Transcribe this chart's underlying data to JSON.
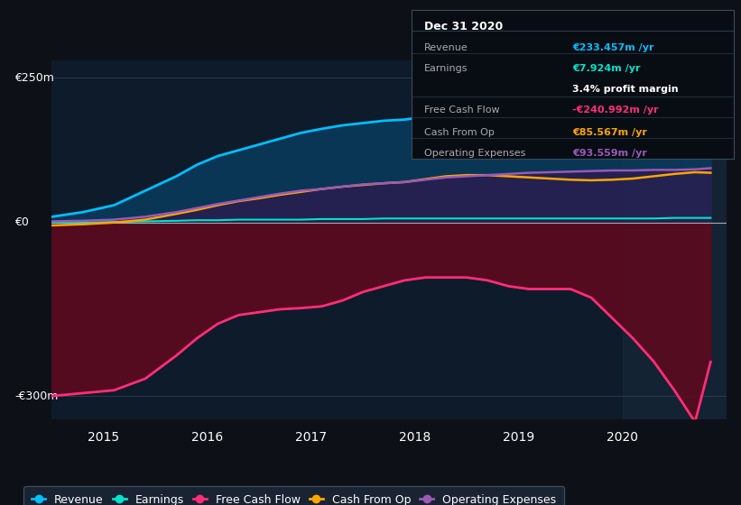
{
  "background_color": "#0d1117",
  "plot_bg_color": "#0d1b2a",
  "xlim": [
    2014.5,
    2021.0
  ],
  "ylim": [
    -340,
    280
  ],
  "xticks": [
    2015,
    2016,
    2017,
    2018,
    2019,
    2020
  ],
  "yticks_values": [
    250,
    0,
    -300
  ],
  "yticks_labels": [
    "€250m",
    "€0",
    "-€300m"
  ],
  "x": [
    2014.5,
    2014.8,
    2015.1,
    2015.4,
    2015.7,
    2015.9,
    2016.1,
    2016.3,
    2016.5,
    2016.7,
    2016.9,
    2017.1,
    2017.3,
    2017.5,
    2017.7,
    2017.9,
    2018.1,
    2018.3,
    2018.5,
    2018.7,
    2018.9,
    2019.1,
    2019.3,
    2019.5,
    2019.7,
    2019.9,
    2020.1,
    2020.3,
    2020.5,
    2020.7,
    2020.85
  ],
  "revenue": [
    10,
    18,
    30,
    55,
    80,
    100,
    115,
    125,
    135,
    145,
    155,
    162,
    168,
    172,
    176,
    178,
    183,
    185,
    183,
    180,
    177,
    175,
    173,
    172,
    172,
    174,
    178,
    188,
    205,
    228,
    233
  ],
  "earnings": [
    0,
    0,
    1,
    2,
    3,
    4,
    4,
    5,
    5,
    5,
    5,
    6,
    6,
    6,
    7,
    7,
    7,
    7,
    7,
    7,
    7,
    7,
    7,
    7,
    7,
    7,
    7,
    7,
    8,
    8,
    8
  ],
  "free_cash_flow": [
    -300,
    -295,
    -290,
    -270,
    -230,
    -200,
    -175,
    -160,
    -155,
    -150,
    -148,
    -145,
    -135,
    -120,
    -110,
    -100,
    -95,
    -95,
    -95,
    -100,
    -110,
    -115,
    -115,
    -115,
    -130,
    -165,
    -200,
    -240,
    -290,
    -345,
    -241
  ],
  "cash_from_op": [
    -5,
    -3,
    0,
    5,
    15,
    22,
    30,
    37,
    42,
    48,
    53,
    58,
    62,
    65,
    68,
    70,
    75,
    80,
    82,
    82,
    80,
    78,
    76,
    74,
    73,
    74,
    76,
    80,
    84,
    87,
    86
  ],
  "operating_expenses": [
    2,
    3,
    5,
    10,
    18,
    25,
    32,
    38,
    44,
    50,
    55,
    58,
    62,
    66,
    68,
    70,
    74,
    78,
    80,
    82,
    84,
    86,
    87,
    88,
    89,
    90,
    90,
    91,
    91,
    92,
    94
  ],
  "revenue_color": "#00bfff",
  "earnings_color": "#00e5cc",
  "fcf_color": "#ff2d78",
  "cashop_color": "#ffa500",
  "opex_color": "#9b59b6",
  "revenue_fill_color": "#0a3a5c",
  "fcf_fill_color": "#5c0a1e",
  "opex_fill_color": "#2d1b4e",
  "legend_bg": "#1a2332",
  "info_box_bg": "#080d14",
  "info_box_border": "#3a4a5a",
  "revenue_label": "Revenue",
  "earnings_label": "Earnings",
  "fcf_label": "Free Cash Flow",
  "cashop_label": "Cash From Op",
  "opex_label": "Operating Expenses",
  "info_title": "Dec 31 2020",
  "info_revenue": "€233.457m /yr",
  "info_earnings": "€7.924m /yr",
  "info_margin": "3.4% profit margin",
  "info_fcf": "-€240.992m /yr",
  "info_cashop": "€85.567m /yr",
  "info_opex": "€93.559m /yr",
  "shade_start": 2020.0,
  "shade_end": 2021.0
}
